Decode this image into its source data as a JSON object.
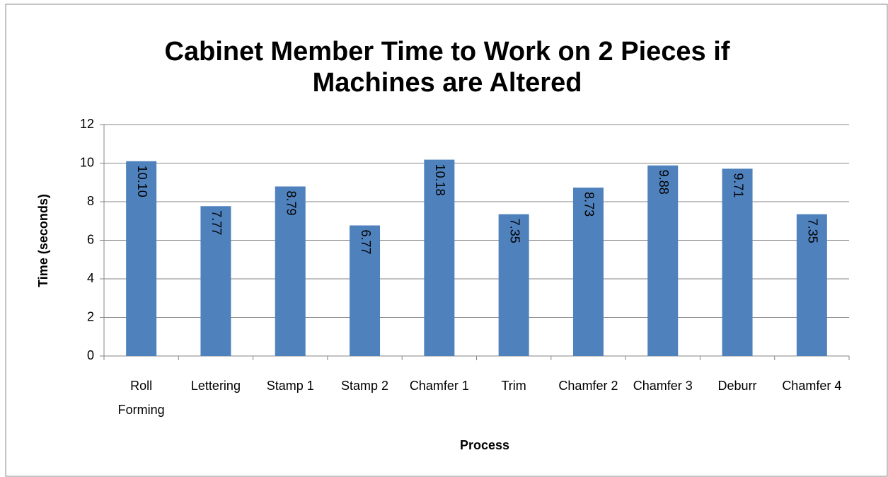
{
  "chart_data": {
    "type": "bar",
    "title": "Cabinet Member Time to Work on 2 Pieces if Machines are Altered",
    "x_label": "Process",
    "y_label": "Time (seconds)",
    "categories": [
      "Roll Forming",
      "Lettering",
      "Stamp 1",
      "Stamp 2",
      "Chamfer 1",
      "Trim",
      "Chamfer 2",
      "Chamfer 3",
      "Deburr",
      "Chamfer 4"
    ],
    "values": [
      10.1,
      7.77,
      8.79,
      6.77,
      10.18,
      7.35,
      8.73,
      9.88,
      9.71,
      7.35
    ],
    "value_labels": [
      "10.10",
      "7.77",
      "8.79",
      "6.77",
      "10.18",
      "7.35",
      "8.73",
      "9.88",
      "9.71",
      "7.35"
    ],
    "color": "#4f81bd",
    "ylim": [
      0,
      12
    ],
    "yticks": [
      0,
      2,
      4,
      6,
      8,
      10,
      12
    ],
    "grid": true
  }
}
